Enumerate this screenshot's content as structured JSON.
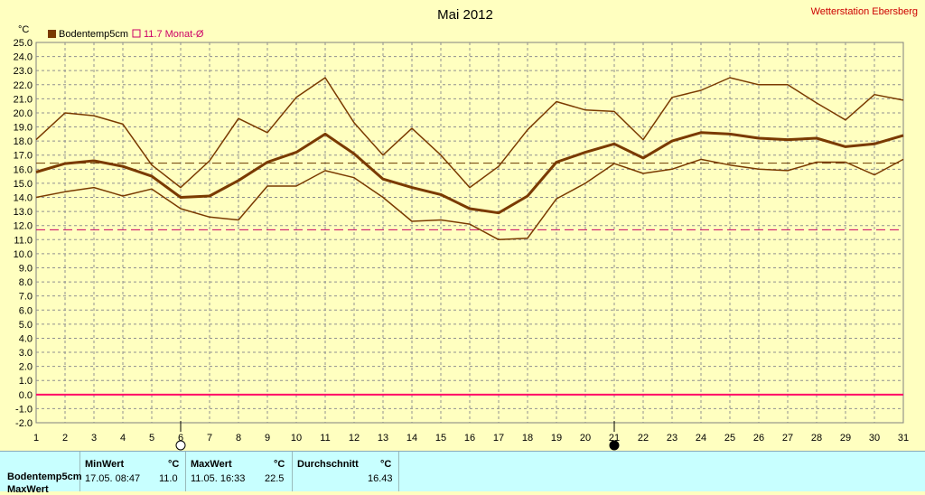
{
  "header": {
    "title": "Mai 2012",
    "station": "Wetterstation Ebersberg"
  },
  "legend": {
    "series_label": "Bodentemp5cm",
    "avg_label": "11.7 Monat-Ø",
    "series_color": "#7a3a00",
    "avg_color": "#cc0066"
  },
  "chart_data": {
    "type": "line",
    "title": "Mai 2012",
    "ylabel": "°C",
    "ylim": [
      -2.0,
      25.0
    ],
    "y_step": 1.0,
    "x": [
      1,
      2,
      3,
      4,
      5,
      6,
      7,
      8,
      9,
      10,
      11,
      12,
      13,
      14,
      15,
      16,
      17,
      18,
      19,
      20,
      21,
      22,
      23,
      24,
      25,
      26,
      27,
      28,
      29,
      30,
      31
    ],
    "grid": true,
    "series": [
      {
        "name": "Bodentemp5cm",
        "role": "mean",
        "values": [
          15.8,
          16.4,
          16.6,
          16.2,
          15.5,
          14.0,
          14.1,
          15.2,
          16.5,
          17.2,
          18.5,
          17.1,
          15.3,
          14.7,
          14.2,
          13.2,
          12.9,
          14.1,
          16.5,
          17.2,
          17.8,
          16.8,
          18.0,
          18.6,
          18.5,
          18.2,
          18.1,
          18.2,
          17.6,
          17.8,
          18.4
        ]
      },
      {
        "role": "max",
        "values": [
          18.1,
          20.0,
          19.8,
          19.2,
          16.3,
          14.7,
          16.6,
          19.6,
          18.6,
          21.1,
          22.5,
          19.3,
          17.0,
          18.9,
          17.0,
          14.7,
          16.2,
          18.8,
          20.8,
          20.2,
          20.1,
          18.1,
          21.1,
          21.6,
          22.5,
          22.0,
          22.0,
          20.7,
          19.5,
          21.3,
          20.9
        ]
      },
      {
        "role": "min",
        "values": [
          14.0,
          14.4,
          14.7,
          14.1,
          14.6,
          13.2,
          12.6,
          12.4,
          14.8,
          14.8,
          15.9,
          15.4,
          14.0,
          12.3,
          12.4,
          12.1,
          11.0,
          11.1,
          13.9,
          15.0,
          16.4,
          15.7,
          16.0,
          16.7,
          16.3,
          16.0,
          15.9,
          16.5,
          16.5,
          15.6,
          16.7
        ]
      }
    ],
    "reference_lines": [
      {
        "label": "Durchschnitt",
        "value": 16.43,
        "style": "dashed",
        "color": "#6b3a00"
      },
      {
        "label": "11.7 Monat-Ø",
        "value": 11.7,
        "style": "dashed",
        "color": "#cc0066"
      },
      {
        "value": 0.0,
        "style": "solid",
        "color": "#ff0066"
      }
    ],
    "moon_phases": [
      {
        "day": 6,
        "phase": "full"
      },
      {
        "day": 21,
        "phase": "new"
      }
    ]
  },
  "footer": {
    "row_label": "Bodentemp5cm",
    "row_label2": "MaxWert",
    "min_header": "MinWert",
    "min_unit": "°C",
    "min_time": "17.05. 08:47",
    "min_value": "11.0",
    "max_header": "MaxWert",
    "max_unit": "°C",
    "max_time": "11.05. 16:33",
    "max_value": "22.5",
    "avg_header": "Durchschnitt",
    "avg_unit": "°C",
    "avg_value": "16.43"
  }
}
